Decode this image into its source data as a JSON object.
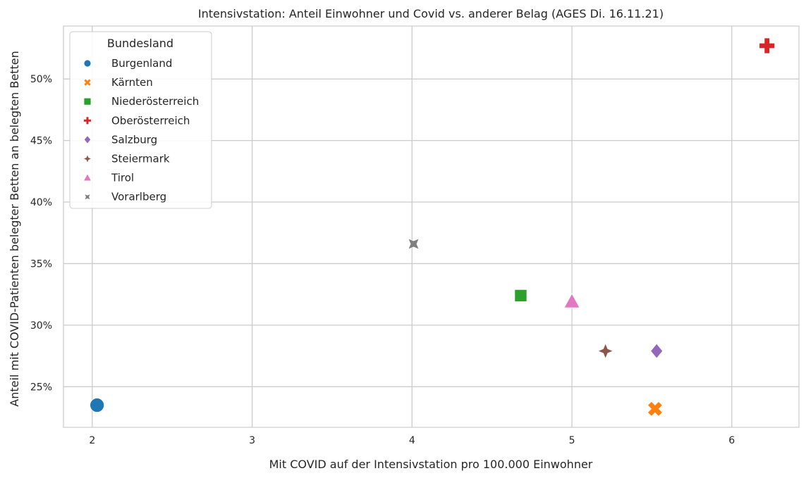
{
  "chart_data": {
    "type": "scatter",
    "title": "Intensivstation: Anteil Einwohner und Covid vs. anderer Belag (AGES Di. 16.11.21)",
    "xlabel": "Mit COVID auf der Intensivstation pro 100.000 Einwohner",
    "ylabel": "Anteil mit COVID-Patienten belegter Betten an belegten Betten",
    "xlim": [
      1.82,
      6.42
    ],
    "ylim": [
      0.217,
      0.543
    ],
    "xticks": [
      2,
      3,
      4,
      5,
      6
    ],
    "xtick_labels": [
      "2",
      "3",
      "4",
      "5",
      "6"
    ],
    "yticks": [
      0.25,
      0.3,
      0.35,
      0.4,
      0.45,
      0.5
    ],
    "ytick_labels": [
      "25%",
      "30%",
      "35%",
      "40%",
      "45%",
      "50%"
    ],
    "grid": true,
    "legend": {
      "title": "Bundesland",
      "placement": "top-left"
    },
    "series": [
      {
        "name": "Burgenland",
        "marker": "circle",
        "color": "#1f77b4",
        "x": 2.03,
        "y": 0.235,
        "size": 1.0
      },
      {
        "name": "Kärnten",
        "marker": "x",
        "color": "#ff7f0e",
        "x": 5.52,
        "y": 0.232,
        "size": 1.0
      },
      {
        "name": "Niederösterreich",
        "marker": "square",
        "color": "#2ca02c",
        "x": 4.68,
        "y": 0.324,
        "size": 0.72
      },
      {
        "name": "Oberösterreich",
        "marker": "plus",
        "color": "#d62728",
        "x": 6.22,
        "y": 0.527,
        "size": 1.0
      },
      {
        "name": "Salzburg",
        "marker": "diamond",
        "color": "#9467bd",
        "x": 5.53,
        "y": 0.279,
        "size": 0.8
      },
      {
        "name": "Steiermark",
        "marker": "star4",
        "color": "#8c564b",
        "x": 5.21,
        "y": 0.279,
        "size": 0.8
      },
      {
        "name": "Tirol",
        "marker": "triangle",
        "color": "#e377c2",
        "x": 5.0,
        "y": 0.319,
        "size": 1.0
      },
      {
        "name": "Vorarlberg",
        "marker": "star4x",
        "color": "#7f7f7f",
        "x": 4.01,
        "y": 0.366,
        "size": 0.8
      }
    ]
  }
}
